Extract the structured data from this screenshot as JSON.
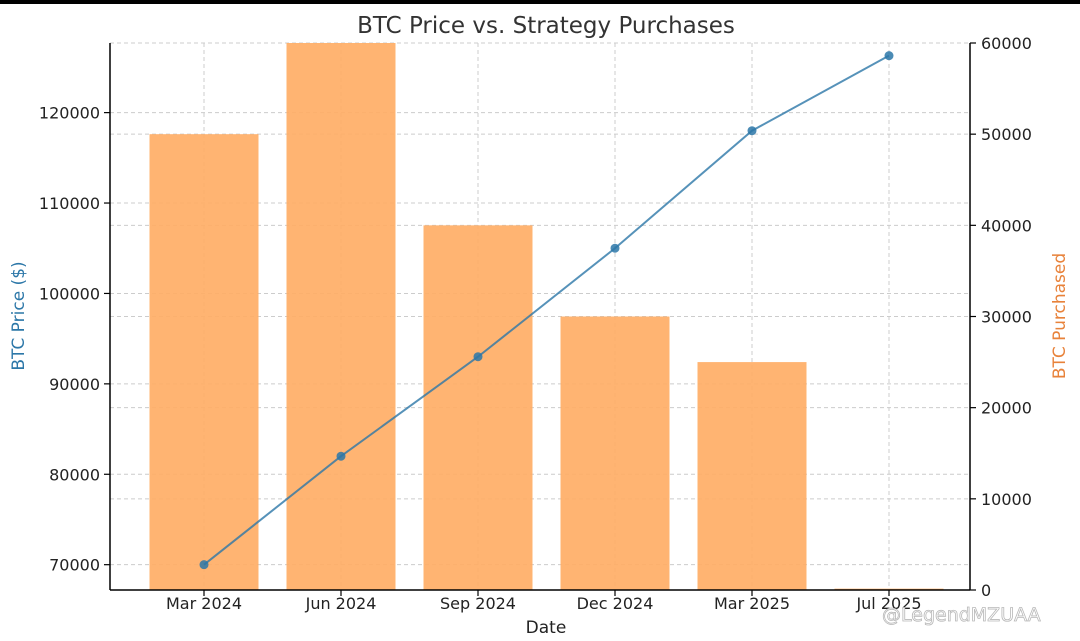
{
  "chart_data": {
    "type": "bar+line",
    "title": "BTC Price vs. Strategy Purchases",
    "xlabel": "Date",
    "categories": [
      "Mar 2024",
      "Jun 2024",
      "Sep 2024",
      "Dec 2024",
      "Mar 2025",
      "Jul 2025"
    ],
    "y_left": {
      "label": "BTC Price ($)",
      "color": "#2c77a8",
      "ticks": [
        70000,
        80000,
        90000,
        100000,
        110000,
        120000
      ],
      "range": [
        67200,
        127700
      ]
    },
    "y_right": {
      "label": "BTC Purchased",
      "color": "#e8823a",
      "ticks": [
        0,
        10000,
        20000,
        30000,
        40000,
        50000,
        60000
      ],
      "range": [
        0,
        60000
      ]
    },
    "series": [
      {
        "kind": "line",
        "axis": "left",
        "color": "#2c77a8",
        "values": [
          70000,
          82000,
          93000,
          105000,
          118000,
          126300
        ]
      },
      {
        "kind": "bar",
        "axis": "right",
        "color": "#ffae66",
        "values": [
          50000,
          60000,
          40000,
          30000,
          25000,
          150
        ]
      }
    ],
    "grid": true
  },
  "watermark": "@LegendMZUAA"
}
